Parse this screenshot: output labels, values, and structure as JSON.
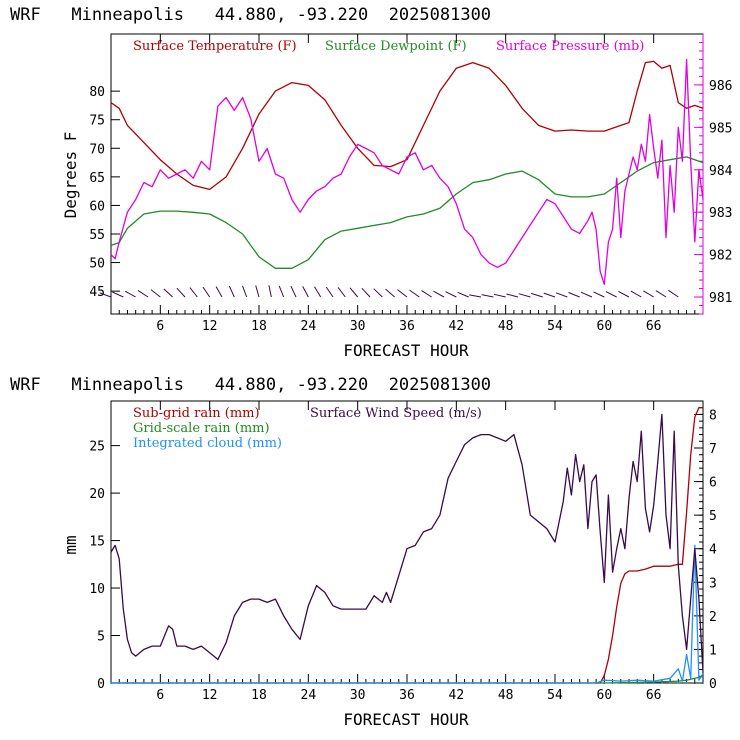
{
  "colors": {
    "temperature": "#b00000",
    "dewpoint": "#228b22",
    "pressure": "#e000e0",
    "subgrid": "#b00000",
    "gridscale": "#228b22",
    "cloud": "#1e90ff",
    "wind": "#3a0a4a",
    "barb": "#3a0a4a"
  },
  "chart_data": [
    {
      "type": "line",
      "title": "WRF   Minneapolis   44.880, -93.220  2025081300",
      "xlabel": "FORECAST HOUR",
      "ylabel": "Degrees F",
      "xlim": [
        0,
        72
      ],
      "ylim": [
        41,
        90
      ],
      "y2lim": [
        980.6,
        987.2
      ],
      "xticks": [
        6,
        12,
        18,
        24,
        30,
        36,
        42,
        48,
        54,
        60,
        66
      ],
      "yticks": [
        45,
        50,
        55,
        60,
        65,
        70,
        75,
        80
      ],
      "y2ticks": [
        981,
        982,
        983,
        984,
        985,
        986
      ],
      "legend": [
        "Surface Temperature (F)",
        "Surface Dewpoint (F)",
        "Surface Pressure (mb)"
      ],
      "series": [
        {
          "name": "Surface Temperature (F)",
          "axis": "left",
          "x": [
            0,
            1,
            2,
            4,
            6,
            8,
            10,
            12,
            14,
            16,
            18,
            20,
            22,
            24,
            26,
            28,
            30,
            32,
            34,
            36,
            38,
            40,
            42,
            44,
            46,
            48,
            50,
            52,
            54,
            56,
            58,
            60,
            62,
            63,
            64,
            65,
            66,
            67,
            68,
            69,
            70,
            71,
            72
          ],
          "values": [
            78,
            77,
            74,
            71,
            68,
            65.5,
            63.5,
            62.8,
            65,
            70,
            76,
            80,
            81.5,
            81,
            78.5,
            74,
            70,
            67,
            66.8,
            68,
            74,
            80,
            84,
            85,
            84,
            81,
            77,
            74,
            73,
            73.2,
            73,
            73,
            74,
            74.5,
            80,
            85,
            85.2,
            84,
            84.5,
            78,
            77,
            77.5,
            77
          ]
        },
        {
          "name": "Surface Dewpoint (F)",
          "axis": "left",
          "x": [
            0,
            1,
            2,
            4,
            6,
            8,
            10,
            12,
            14,
            16,
            18,
            20,
            22,
            24,
            26,
            28,
            30,
            32,
            34,
            36,
            38,
            40,
            42,
            44,
            46,
            48,
            50,
            52,
            54,
            56,
            58,
            60,
            62,
            64,
            66,
            68,
            70,
            72
          ],
          "values": [
            53,
            53.5,
            56,
            58.5,
            59,
            59,
            58.8,
            58.5,
            57,
            55,
            51,
            49,
            49,
            50.5,
            54,
            55.5,
            56,
            56.5,
            57,
            58,
            58.5,
            59.5,
            62,
            64,
            64.5,
            65.5,
            66,
            64.5,
            62,
            61.5,
            61.5,
            62,
            64,
            66,
            67.5,
            68,
            68.5,
            67.5
          ]
        },
        {
          "name": "Surface Pressure (mb)",
          "axis": "right",
          "x": [
            0,
            0.5,
            1,
            2,
            3,
            4,
            5,
            6,
            7,
            8,
            9,
            10,
            11,
            12,
            13,
            14,
            15,
            16,
            17,
            18,
            19,
            20,
            21,
            22,
            23,
            24,
            25,
            26,
            27,
            28,
            29,
            30,
            31,
            32,
            33,
            34,
            35,
            36,
            37,
            38,
            39,
            40,
            41,
            42,
            43,
            44,
            45,
            46,
            47,
            48,
            49,
            50,
            51,
            52,
            53,
            54,
            55,
            56,
            57,
            58,
            58.5,
            59,
            59.5,
            60,
            60.5,
            61,
            61.5,
            62,
            62.5,
            63,
            63.5,
            64,
            64.5,
            65,
            65.5,
            66,
            66.5,
            67,
            67.5,
            68,
            68.5,
            69,
            69.5,
            70,
            70.5,
            71,
            71.5,
            72
          ],
          "values": [
            982.0,
            981.9,
            982.3,
            983.0,
            983.3,
            983.7,
            983.6,
            984.0,
            983.8,
            983.9,
            984.0,
            983.8,
            984.2,
            984.0,
            985.5,
            985.7,
            985.4,
            985.7,
            985.2,
            984.2,
            984.5,
            983.9,
            983.8,
            983.3,
            983.0,
            983.3,
            983.5,
            983.6,
            983.8,
            983.9,
            984.3,
            984.6,
            984.5,
            984.4,
            984.1,
            984.0,
            983.9,
            984.3,
            984.4,
            984.0,
            984.1,
            983.8,
            983.6,
            983.2,
            982.6,
            982.4,
            982.0,
            981.8,
            981.7,
            981.8,
            982.1,
            982.4,
            982.7,
            983.0,
            983.3,
            983.2,
            982.9,
            982.6,
            982.5,
            982.8,
            983.0,
            982.6,
            981.6,
            981.3,
            982.3,
            982.6,
            983.8,
            982.4,
            983.5,
            983.9,
            984.3,
            984.0,
            984.6,
            984.2,
            985.3,
            984.5,
            983.8,
            984.7,
            982.4,
            984.1,
            983.0,
            985.0,
            984.2,
            986.6,
            984.2,
            982.3,
            984.0,
            983.3
          ]
        }
      ]
    },
    {
      "type": "line",
      "title": "WRF   Minneapolis   44.880, -93.220  2025081300",
      "xlabel": "FORECAST HOUR",
      "ylabel": "mm",
      "xlim": [
        0,
        72
      ],
      "ylim": [
        0,
        29.7
      ],
      "y2lim": [
        0,
        8.4
      ],
      "xticks": [
        6,
        12,
        18,
        24,
        30,
        36,
        42,
        48,
        54,
        60,
        66
      ],
      "yticks": [
        0,
        5,
        10,
        15,
        20,
        25
      ],
      "y2ticks": [
        0,
        1,
        2,
        3,
        4,
        5,
        6,
        7,
        8
      ],
      "legend": [
        "Sub-grid rain (mm)",
        "Grid-scale rain (mm)",
        "Integrated cloud (mm)",
        "Surface Wind Speed (m/s)"
      ],
      "series": [
        {
          "name": "Sub-grid rain (mm)",
          "axis": "left",
          "x": [
            0,
            59.5,
            60,
            60.5,
            61,
            61.5,
            62,
            62.5,
            63,
            64,
            65,
            66,
            67,
            68,
            69,
            69.5,
            70,
            70.5,
            71,
            71.5,
            72
          ],
          "values": [
            0,
            0,
            0.8,
            2.5,
            5,
            8,
            10.5,
            11.5,
            11.8,
            11.8,
            12,
            12.3,
            12.3,
            12.3,
            12.5,
            12.5,
            18,
            24,
            28,
            29,
            29
          ]
        },
        {
          "name": "Grid-scale rain (mm)",
          "axis": "left",
          "x": [
            0,
            60,
            66,
            69,
            70,
            71,
            72
          ],
          "values": [
            0,
            0,
            0.1,
            0.2,
            0.3,
            0.5,
            0.7
          ]
        },
        {
          "name": "Integrated cloud (mm)",
          "axis": "left",
          "x": [
            0,
            59,
            60,
            62,
            64,
            66,
            68,
            69,
            69.5,
            70,
            70.5,
            71,
            71.5,
            72
          ],
          "values": [
            0,
            0,
            0.3,
            0.2,
            0.3,
            0.2,
            0.5,
            1.5,
            0.2,
            3.0,
            0.5,
            14.5,
            0.3,
            1.0
          ]
        },
        {
          "name": "Surface Wind Speed (m/s)",
          "axis": "right",
          "x": [
            0,
            0.5,
            1,
            1.5,
            2,
            2.5,
            3,
            4,
            5,
            6,
            7,
            7.5,
            8,
            9,
            10,
            11,
            12,
            13,
            14,
            15,
            16,
            17,
            18,
            19,
            20,
            21,
            22,
            23,
            24,
            25,
            26,
            27,
            28,
            29,
            30,
            31,
            32,
            33,
            33.5,
            34,
            35,
            36,
            37,
            38,
            39,
            40,
            41,
            42,
            43,
            44,
            45,
            46,
            47,
            48,
            49,
            50,
            51,
            52,
            53,
            54,
            55,
            55.5,
            56,
            56.5,
            57,
            57.5,
            58,
            58.5,
            59,
            59.5,
            60,
            60.5,
            61,
            61.5,
            62,
            62.5,
            63,
            63.5,
            64,
            64.5,
            65,
            65.5,
            66,
            66.5,
            67,
            67.5,
            68,
            68.5,
            69,
            69.5,
            70,
            70.5,
            71,
            71.5,
            72
          ],
          "values": [
            3.9,
            4.1,
            3.7,
            2.2,
            1.3,
            0.9,
            0.8,
            1.0,
            1.1,
            1.1,
            1.7,
            1.6,
            1.1,
            1.1,
            1.0,
            1.1,
            0.9,
            0.7,
            1.2,
            2.0,
            2.4,
            2.5,
            2.5,
            2.4,
            2.5,
            2.0,
            1.6,
            1.3,
            2.3,
            2.9,
            2.7,
            2.3,
            2.2,
            2.2,
            2.2,
            2.2,
            2.6,
            2.4,
            2.7,
            2.4,
            3.2,
            4.0,
            4.1,
            4.5,
            4.6,
            5.0,
            6.1,
            6.6,
            7.1,
            7.3,
            7.4,
            7.4,
            7.3,
            7.2,
            7.4,
            6.5,
            5.0,
            4.8,
            4.6,
            4.2,
            5.4,
            6.4,
            5.6,
            6.8,
            6.0,
            6.5,
            4.6,
            6.0,
            6.2,
            4.5,
            3.0,
            5.6,
            3.3,
            4.0,
            4.6,
            4.0,
            5.5,
            6.6,
            6.0,
            7.5,
            5.2,
            4.5,
            5.3,
            6.6,
            8.0,
            5.0,
            4.0,
            7.5,
            3.5,
            2.0,
            1.0,
            2.5,
            4.0,
            2.5,
            0.3
          ]
        }
      ]
    }
  ]
}
